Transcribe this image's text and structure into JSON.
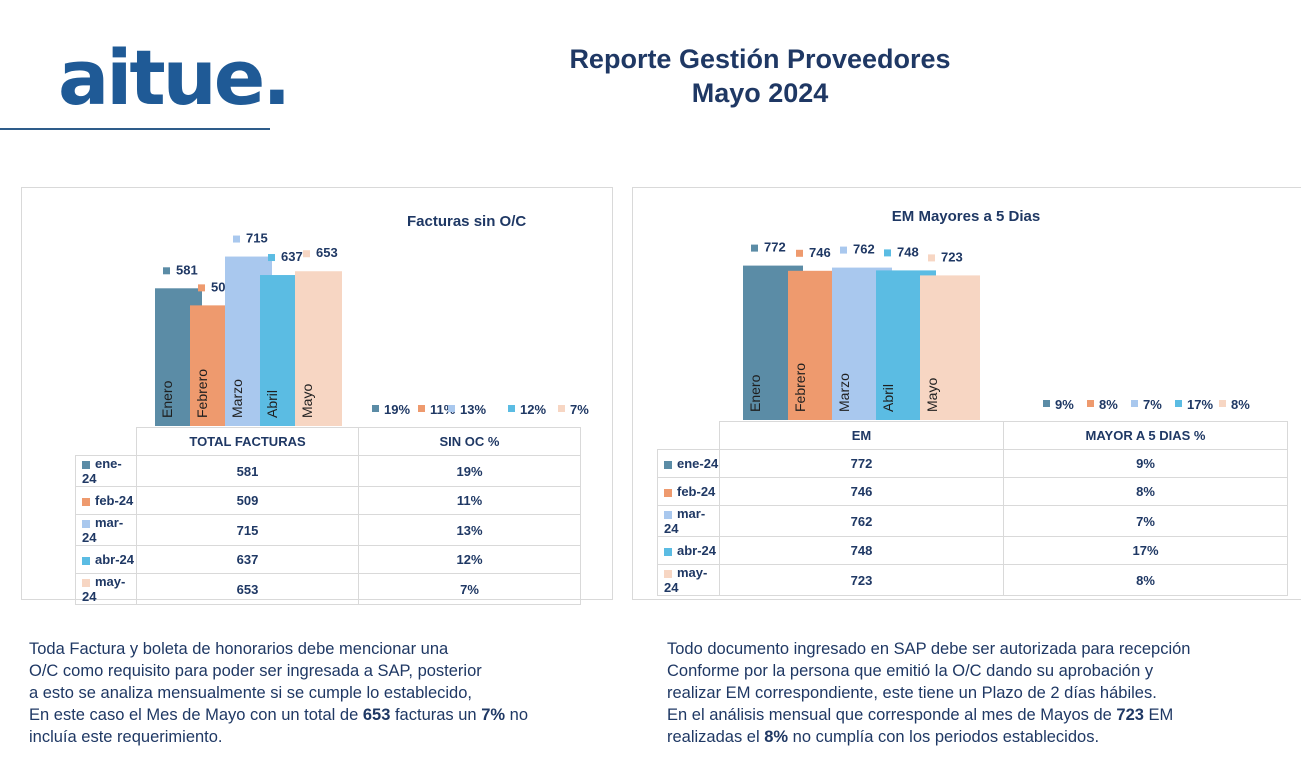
{
  "header": {
    "logo_text": "aitue.",
    "title_line1": "Reporte Gestión Proveedores",
    "title_line2": "Mayo 2024"
  },
  "colors": {
    "Enero": "#5b8ca6",
    "Febrero": "#ee9a6e",
    "Marzo": "#a9c8ee",
    "Abril": "#5bbce3",
    "Mayo": "#f7d6c3"
  },
  "chart_data": [
    {
      "type": "bar",
      "title": "Facturas sin O/C",
      "categories": [
        "Enero",
        "Febrero",
        "Marzo",
        "Abril",
        "Mayo"
      ],
      "series": [
        {
          "name": "TOTAL FACTURAS",
          "values": [
            581,
            509,
            715,
            637,
            653
          ]
        },
        {
          "name": "SIN OC %",
          "values": [
            19,
            11,
            13,
            12,
            7
          ],
          "labels": [
            "19%",
            "11%",
            "13%",
            "12%",
            "7%"
          ]
        }
      ],
      "table": {
        "headers": [
          "TOTAL FACTURAS",
          "SIN OC %"
        ],
        "rows": [
          {
            "label": "ene-24",
            "values": [
              "581",
              "19%"
            ]
          },
          {
            "label": "feb-24",
            "values": [
              "509",
              "11%"
            ]
          },
          {
            "label": "mar-24",
            "values": [
              "715",
              "13%"
            ]
          },
          {
            "label": "abr-24",
            "values": [
              "637",
              "12%"
            ]
          },
          {
            "label": "may-24",
            "values": [
              "653",
              "7%"
            ]
          }
        ]
      }
    },
    {
      "type": "bar",
      "title": "EM Mayores a 5 Dias",
      "categories": [
        "Enero",
        "Febrero",
        "Marzo",
        "Abril",
        "Mayo"
      ],
      "series": [
        {
          "name": "EM",
          "values": [
            772,
            746,
            762,
            748,
            723
          ]
        },
        {
          "name": "MAYOR A 5 DIAS %",
          "values": [
            9,
            8,
            7,
            17,
            8
          ],
          "labels": [
            "9%",
            "8%",
            "7%",
            "17%",
            "8%"
          ]
        }
      ],
      "table": {
        "headers": [
          "EM",
          "MAYOR A 5 DIAS %"
        ],
        "rows": [
          {
            "label": "ene-24",
            "values": [
              "772",
              "9%"
            ]
          },
          {
            "label": "feb-24",
            "values": [
              "746",
              "8%"
            ]
          },
          {
            "label": "mar-24",
            "values": [
              "762",
              "7%"
            ]
          },
          {
            "label": "abr-24",
            "values": [
              "748",
              "17%"
            ]
          },
          {
            "label": "may-24",
            "values": [
              "723",
              "8%"
            ]
          }
        ]
      }
    }
  ],
  "notes": {
    "left": {
      "l1": "Toda Factura y boleta de honorarios debe mencionar una",
      "l2": "O/C como requisito para poder ser ingresada a SAP, posterior",
      "l3": "a esto se analiza mensualmente si se cumple lo establecido,",
      "l4a": "En este caso el Mes de Mayo con un total de ",
      "l4b": "653",
      "l4c": " facturas un ",
      "l4d": "7%",
      "l4e": " no",
      "l5": "incluía este requerimiento."
    },
    "right": {
      "l1": "Todo documento ingresado en SAP debe ser autorizada para recepción",
      "l2": "Conforme por la persona que emitió la O/C dando su aprobación y",
      "l3": "realizar EM correspondiente, este tiene un Plazo de 2 días hábiles.",
      "l4a": "En el análisis mensual que corresponde al mes de Mayos de ",
      "l4b": "723",
      "l4c": " EM",
      "l5a": "realizadas el ",
      "l5b": "8%",
      "l5c": " no cumplía con los periodos establecidos."
    }
  }
}
